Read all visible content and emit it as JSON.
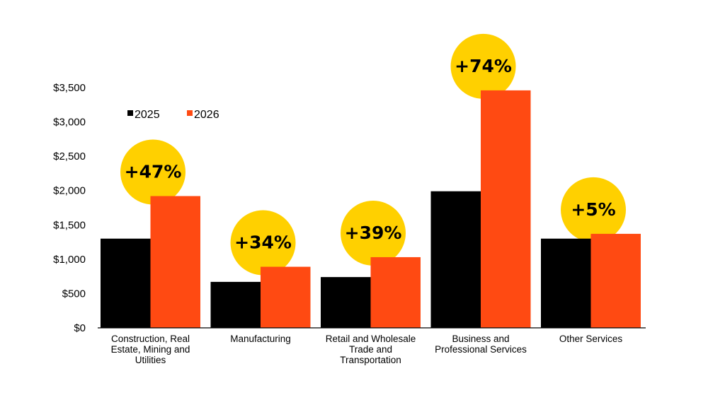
{
  "chart_data": {
    "type": "bar",
    "categories": [
      [
        "Construction, Real",
        "Estate, Mining and",
        "Utilities"
      ],
      [
        "Manufacturing"
      ],
      [
        "Retail and Wholesale",
        "Trade and",
        "Transportation"
      ],
      [
        "Business and",
        "Professional Services"
      ],
      [
        "Other Services"
      ]
    ],
    "series": [
      {
        "name": "2025",
        "values": [
          1300,
          670,
          740,
          1990,
          1300
        ]
      },
      {
        "name": "2026",
        "values": [
          1920,
          890,
          1030,
          3460,
          1370
        ]
      }
    ],
    "change_labels": [
      "+47%",
      "+34%",
      "+39%",
      "+74%",
      "+5%"
    ],
    "yticks": [
      "$0",
      "$500",
      "$1,000",
      "$1,500",
      "$2,000",
      "$2,500",
      "$3,000",
      "$3,500"
    ],
    "ylim": [
      0,
      3500
    ],
    "legend_position": "top-left",
    "colors": {
      "series_2025": "#000000",
      "series_2026": "#ff4a12",
      "highlight_circle": "#ffd000"
    }
  }
}
